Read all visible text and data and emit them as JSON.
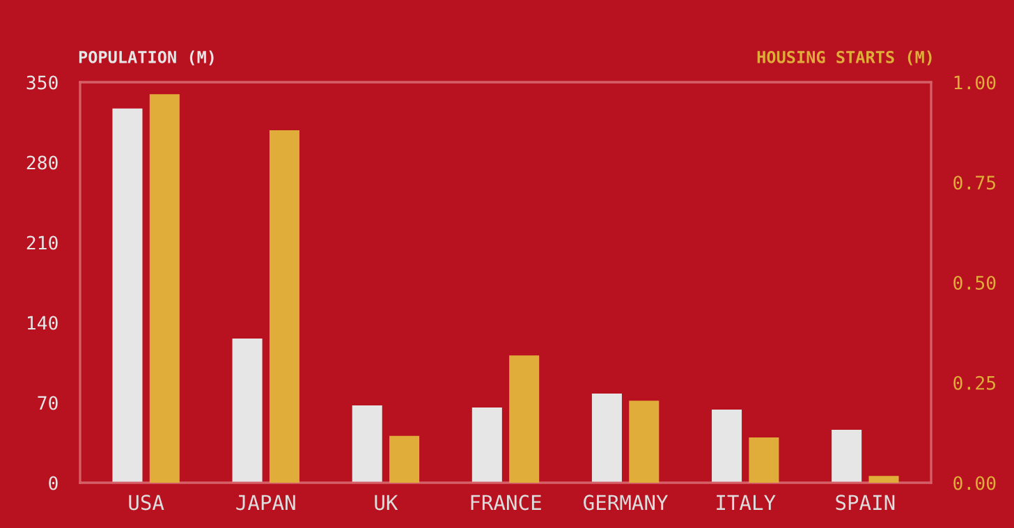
{
  "chart_data": {
    "type": "bar",
    "ylabel": "POPULATION (M)",
    "y2label": "HOUSING STARTS (M)",
    "categories": [
      "USA",
      "JAPAN",
      "UK",
      "FRANCE",
      "GERMANY",
      "ITALY",
      "SPAIN"
    ],
    "series": [
      {
        "color": "#e6e6e6",
        "values": [
          327,
          126,
          67.6,
          65.7,
          77.9,
          63.9,
          46.3
        ]
      },
      {
        "color": "#e0ac3a",
        "axis": "y2",
        "values": [
          0.97,
          0.88,
          0.117,
          0.318,
          0.205,
          0.113,
          0.017
        ]
      }
    ],
    "ylim": [
      0,
      350
    ],
    "yticks": [
      0,
      70,
      140,
      210,
      280,
      350
    ],
    "y2lim": [
      0,
      1
    ],
    "y2ticks": [
      {
        "value": 0,
        "label": "0.00"
      },
      {
        "value": 0.25,
        "label": "0.25"
      },
      {
        "value": 0.5,
        "label": "0.50"
      },
      {
        "value": 0.75,
        "label": "0.75"
      },
      {
        "value": 1,
        "label": "1.00"
      }
    ],
    "grid": false
  }
}
